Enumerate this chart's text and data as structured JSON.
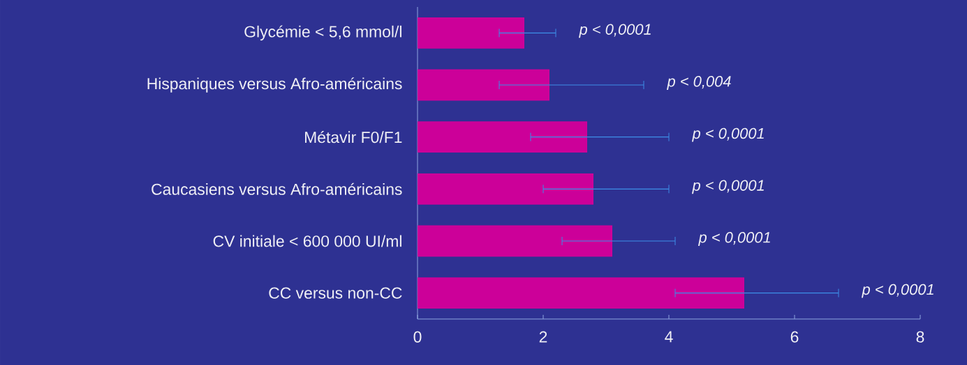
{
  "chart_data": {
    "type": "bar",
    "orientation": "horizontal",
    "categories": [
      "Glycémie < 5,6 mmol/l",
      "Hispaniques versus Afro-américains",
      "Métavir F0/F1",
      "Caucasiens versus Afro-américains",
      "CV initiale < 600 000 UI/ml",
      "CC versus non-CC"
    ],
    "values": [
      1.7,
      2.1,
      2.7,
      2.8,
      3.1,
      5.2
    ],
    "errors": [
      [
        1.3,
        2.2
      ],
      [
        1.3,
        3.6
      ],
      [
        1.8,
        4.0
      ],
      [
        2.0,
        4.0
      ],
      [
        2.3,
        4.1
      ],
      [
        4.1,
        6.7
      ]
    ],
    "color": "#cc0099",
    "xlim": [
      0,
      8
    ],
    "xticks": [
      0,
      2,
      4,
      6,
      8
    ],
    "grid": false,
    "annotations": [
      "p < 0,0001",
      "p < 0,004",
      "p < 0,0001",
      "p < 0,0001",
      "p < 0,0001",
      "p < 0,0001"
    ]
  }
}
